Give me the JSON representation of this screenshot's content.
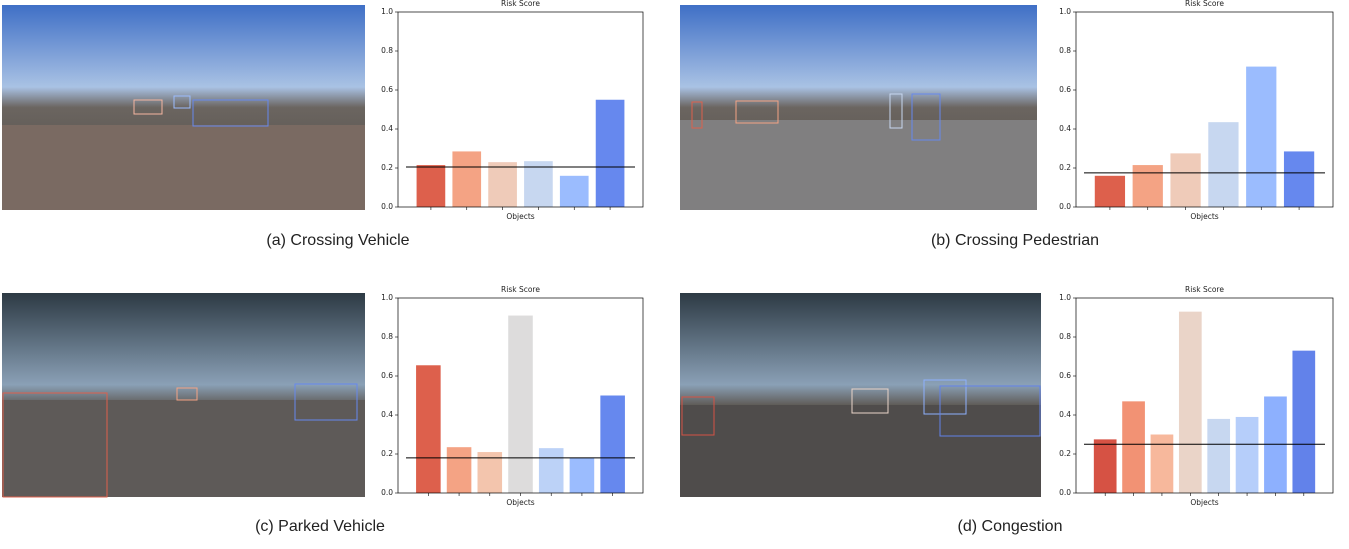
{
  "chart_data": [
    {
      "type": "bar",
      "title": "Risk Score",
      "xlabel": "Objects",
      "caption": "(a) Crossing Vehicle",
      "values": [
        0.215,
        0.285,
        0.23,
        0.235,
        0.16,
        0.55
      ],
      "colors": [
        "#dd604c",
        "#f4a384",
        "#efcbb9",
        "#c7d7f0",
        "#9bbcfe",
        "#6688ee"
      ],
      "threshold": 0.205,
      "ylim": [
        0,
        1
      ],
      "yticks": [
        0.0,
        0.2,
        0.4,
        0.6,
        0.8,
        1.0
      ]
    },
    {
      "type": "bar",
      "title": "Risk Score",
      "xlabel": "Objects",
      "caption": "(b) Crossing Pedestrian",
      "values": [
        0.16,
        0.215,
        0.275,
        0.435,
        0.72,
        0.285
      ],
      "colors": [
        "#dd604c",
        "#f4a384",
        "#efcbb9",
        "#c7d7f0",
        "#9bbcfe",
        "#6688ee"
      ],
      "threshold": 0.175,
      "ylim": [
        0,
        1
      ],
      "yticks": [
        0.0,
        0.2,
        0.4,
        0.6,
        0.8,
        1.0
      ]
    },
    {
      "type": "bar",
      "title": "Risk Score",
      "xlabel": "Objects",
      "caption": "(c) Parked Vehicle",
      "values": [
        0.655,
        0.235,
        0.21,
        0.91,
        0.23,
        0.18,
        0.5
      ],
      "colors": [
        "#dd604c",
        "#f4a384",
        "#f3c5ad",
        "#dddcdc",
        "#bcd2f7",
        "#9bbcfe",
        "#6688ee"
      ],
      "threshold": 0.18,
      "ylim": [
        0,
        1
      ],
      "yticks": [
        0.0,
        0.2,
        0.4,
        0.6,
        0.8,
        1.0
      ]
    },
    {
      "type": "bar",
      "title": "Risk Score",
      "xlabel": "Objects",
      "caption": "(d) Congestion",
      "values": [
        0.275,
        0.47,
        0.3,
        0.93,
        0.38,
        0.39,
        0.495,
        0.73
      ],
      "colors": [
        "#d65244",
        "#f29274",
        "#f7b89c",
        "#ead4c8",
        "#c7d7f0",
        "#b6cefa",
        "#8db0fe",
        "#6282ea"
      ],
      "threshold": 0.25,
      "ylim": [
        0,
        1
      ],
      "yticks": [
        0.0,
        0.2,
        0.4,
        0.6,
        0.8,
        1.0
      ]
    }
  ]
}
